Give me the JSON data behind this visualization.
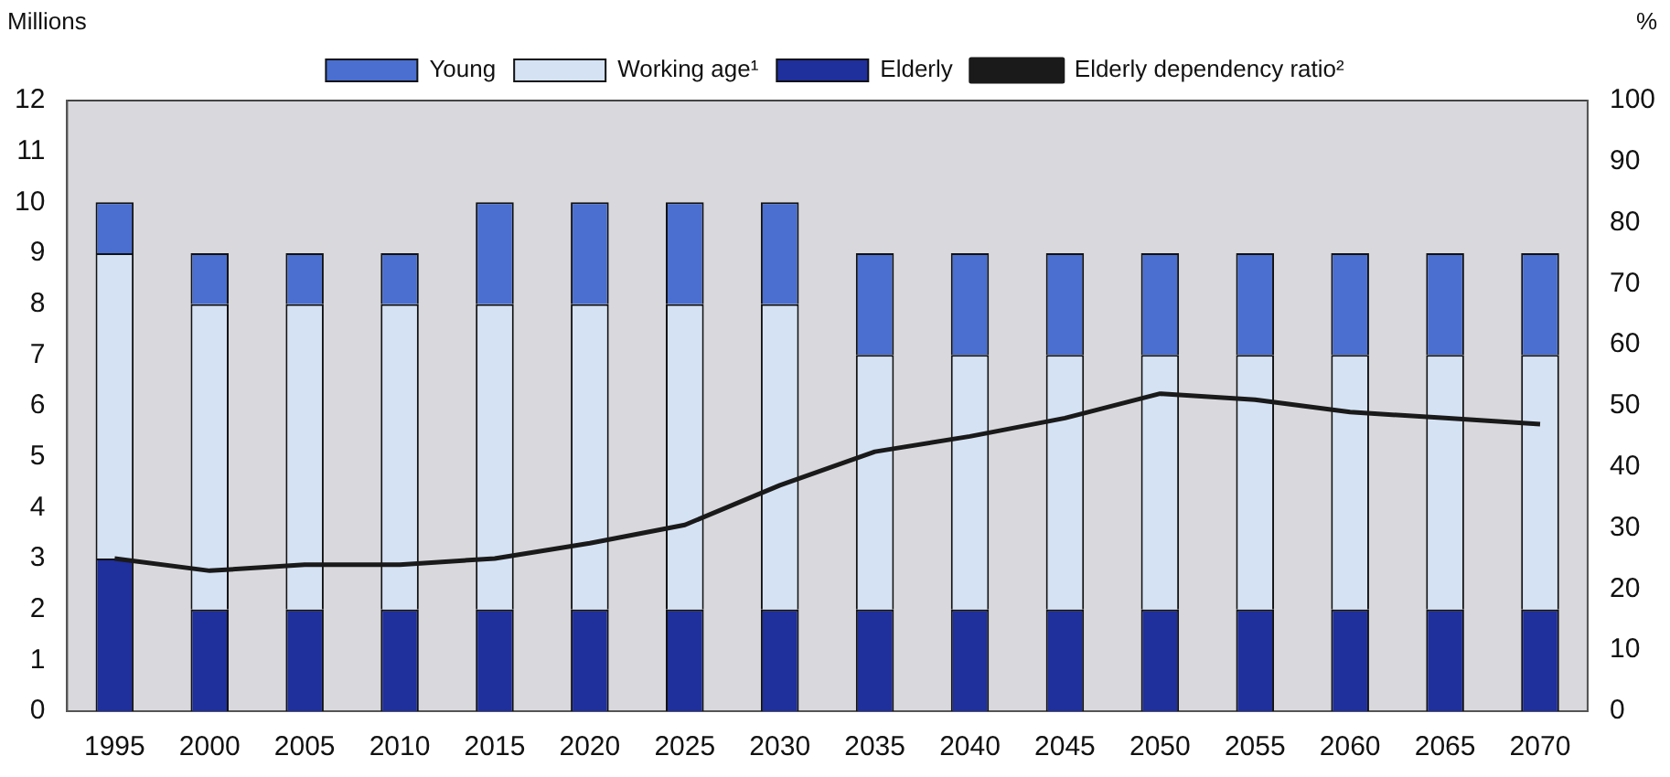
{
  "chart_data": {
    "type": "bar",
    "stacked": true,
    "ylabel": "Millions",
    "y2label": "%",
    "categories": [
      "1995",
      "2000",
      "2005",
      "2010",
      "2015",
      "2020",
      "2025",
      "2030",
      "2035",
      "2040",
      "2045",
      "2050",
      "2055",
      "2060",
      "2065",
      "2070"
    ],
    "series": [
      {
        "name": "Elderly",
        "color": "#1f2f9c",
        "values": [
          3,
          2,
          2,
          2,
          2,
          2,
          2,
          2,
          2,
          2,
          2,
          2,
          2,
          2,
          2,
          2
        ]
      },
      {
        "name": "Working age¹",
        "color": "#d4e2f4",
        "values": [
          6,
          6,
          6,
          6,
          6,
          6,
          6,
          6,
          5,
          5,
          5,
          5,
          5,
          5,
          5,
          5
        ]
      },
      {
        "name": "Young",
        "color": "#4a6fd0",
        "values": [
          1,
          1,
          1,
          1,
          2,
          2,
          2,
          2,
          2,
          2,
          2,
          2,
          2,
          2,
          2,
          2
        ]
      },
      {
        "name": "Elderly dependency ratio²",
        "type": "line",
        "axis": "y2",
        "color": "#1a1a1a",
        "values": [
          25,
          23,
          24,
          24,
          25,
          27.5,
          30.5,
          37,
          42.5,
          45,
          48,
          52,
          51,
          49,
          48,
          47
        ]
      }
    ],
    "ylim": [
      0,
      12
    ],
    "yticks": [
      0,
      1,
      2,
      3,
      4,
      5,
      6,
      7,
      8,
      9,
      10,
      11,
      12
    ],
    "y2lim": [
      0,
      100
    ],
    "y2ticks": [
      0,
      10,
      20,
      30,
      40,
      50,
      60,
      70,
      80,
      90,
      100
    ],
    "grid": false,
    "legend": "top",
    "marker": "none"
  }
}
